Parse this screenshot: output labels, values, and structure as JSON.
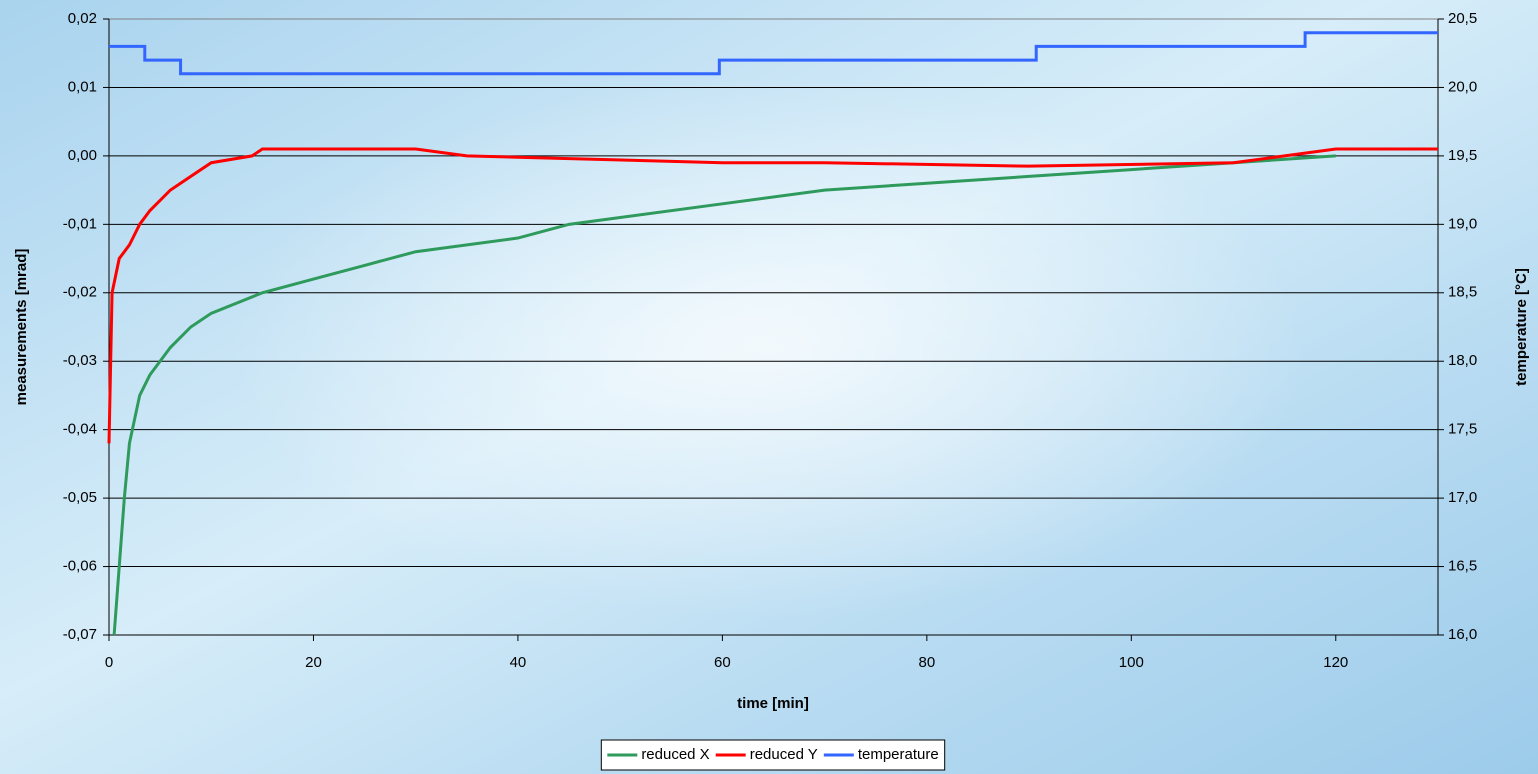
{
  "chart_data": {
    "type": "line",
    "xlabel": "time [min]",
    "ylabel": "measurements [mrad]",
    "y2label": "temperature [°C]",
    "xlim": [
      0,
      130
    ],
    "xticks": [
      0,
      20,
      40,
      60,
      80,
      100,
      120
    ],
    "ylim": [
      -0.07,
      0.02
    ],
    "yticks": [
      {
        "value": 0.02,
        "label": "0,02"
      },
      {
        "value": 0.01,
        "label": "0,01"
      },
      {
        "value": 0,
        "label": "0,00"
      },
      {
        "value": -0.01,
        "label": "-0,01"
      },
      {
        "value": -0.02,
        "label": "-0,02"
      },
      {
        "value": -0.03,
        "label": "-0,03"
      },
      {
        "value": -0.04,
        "label": "-0,04"
      },
      {
        "value": -0.05,
        "label": "-0,05"
      },
      {
        "value": -0.06,
        "label": "-0,06"
      },
      {
        "value": -0.07,
        "label": "-0,07"
      }
    ],
    "y2lim": [
      16,
      20.5
    ],
    "y2ticks": [
      {
        "value": 20.5,
        "label": "20,5"
      },
      {
        "value": 20,
        "label": "20,0"
      },
      {
        "value": 19.5,
        "label": "19,5"
      },
      {
        "value": 19,
        "label": "19,0"
      },
      {
        "value": 18.5,
        "label": "18,5"
      },
      {
        "value": 18,
        "label": "18,0"
      },
      {
        "value": 17.5,
        "label": "17,5"
      },
      {
        "value": 17,
        "label": "17,0"
      },
      {
        "value": 16.5,
        "label": "16,5"
      },
      {
        "value": 16,
        "label": "16,0"
      }
    ],
    "grid": true,
    "legend": "bottom",
    "series": [
      {
        "name": "reduced X",
        "color": "#2e9a5c",
        "x": [
          0.5,
          1,
          1.5,
          2,
          3,
          4,
          6,
          8,
          10,
          15,
          20,
          25,
          30,
          40,
          45,
          50,
          60,
          70,
          80,
          90,
          100,
          110,
          120
        ],
        "values": [
          -0.07,
          -0.06,
          -0.05,
          -0.042,
          -0.035,
          -0.032,
          -0.028,
          -0.025,
          -0.023,
          -0.02,
          -0.018,
          -0.016,
          -0.014,
          -0.012,
          -0.01,
          -0.009,
          -0.007,
          -0.005,
          -0.004,
          -0.003,
          -0.002,
          -0.001,
          0
        ]
      },
      {
        "name": "reduced Y",
        "color": "#ff0000",
        "x": [
          0,
          0.3,
          1,
          2,
          3,
          4,
          6,
          8,
          10,
          14,
          15,
          30,
          35,
          60,
          70,
          90,
          110,
          115,
          120,
          130
        ],
        "values": [
          -0.042,
          -0.02,
          -0.015,
          -0.013,
          -0.01,
          -0.008,
          -0.005,
          -0.003,
          -0.001,
          0,
          0.001,
          0.001,
          0,
          -0.001,
          -0.001,
          -0.0015,
          -0.001,
          0,
          0.001,
          0.001
        ]
      },
      {
        "name": "temperature",
        "color": "#3366ff",
        "axis": "y2",
        "x": [
          0,
          3.5,
          3.5,
          7,
          7,
          59.7,
          59.7,
          90.7,
          90.7,
          117,
          117,
          130
        ],
        "values": [
          20.3,
          20.3,
          20.2,
          20.2,
          20.1,
          20.1,
          20.2,
          20.2,
          20.3,
          20.3,
          20.4,
          20.4
        ]
      }
    ]
  }
}
